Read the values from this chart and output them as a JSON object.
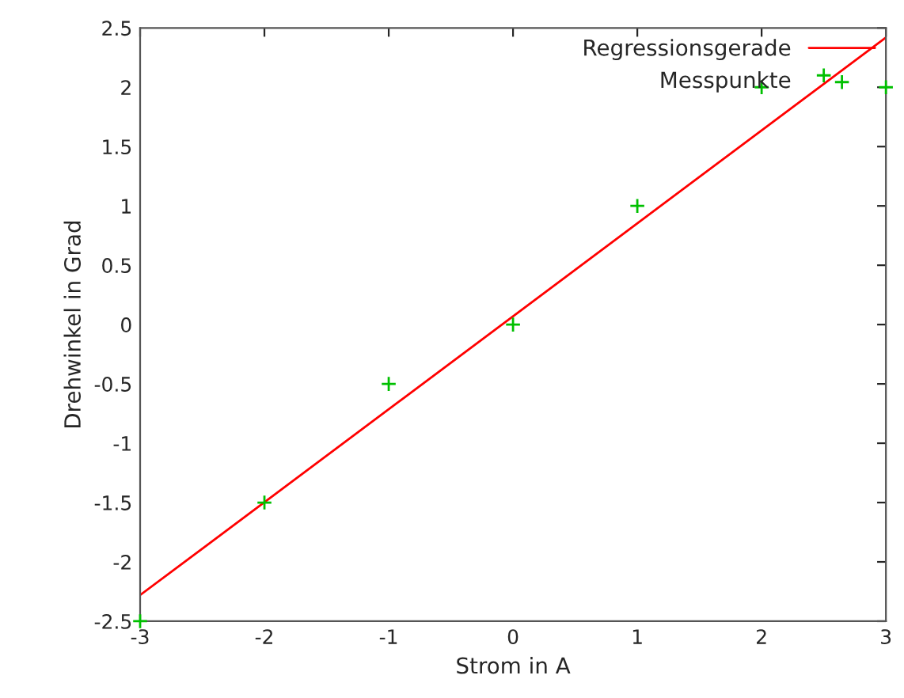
{
  "chart_data": {
    "type": "scatter",
    "xlabel": "Strom in A",
    "ylabel": "Drehwinkel in Grad",
    "xlim": [
      -3,
      3
    ],
    "ylim": [
      -2.5,
      2.5
    ],
    "xticks": [
      -3,
      -2,
      -1,
      0,
      1,
      2,
      3
    ],
    "yticks": [
      -2.5,
      -2,
      -1.5,
      -1,
      -0.5,
      0,
      0.5,
      1,
      1.5,
      2,
      2.5
    ],
    "grid": false,
    "legend": "top right",
    "series": [
      {
        "name": "Regressionsgerade",
        "type": "line",
        "color": "#ff0000",
        "x": [
          -3,
          3
        ],
        "values": [
          -2.28,
          2.42
        ],
        "marker": "none",
        "line_style": "solid"
      },
      {
        "name": "Messpunkte",
        "color": "#00c000",
        "x": [
          -3,
          -2,
          -1,
          0,
          1,
          2,
          2.5,
          3
        ],
        "values": [
          -2.5,
          -1.5,
          -0.5,
          0,
          1,
          2,
          2.1,
          2
        ],
        "marker": "cross"
      }
    ]
  }
}
